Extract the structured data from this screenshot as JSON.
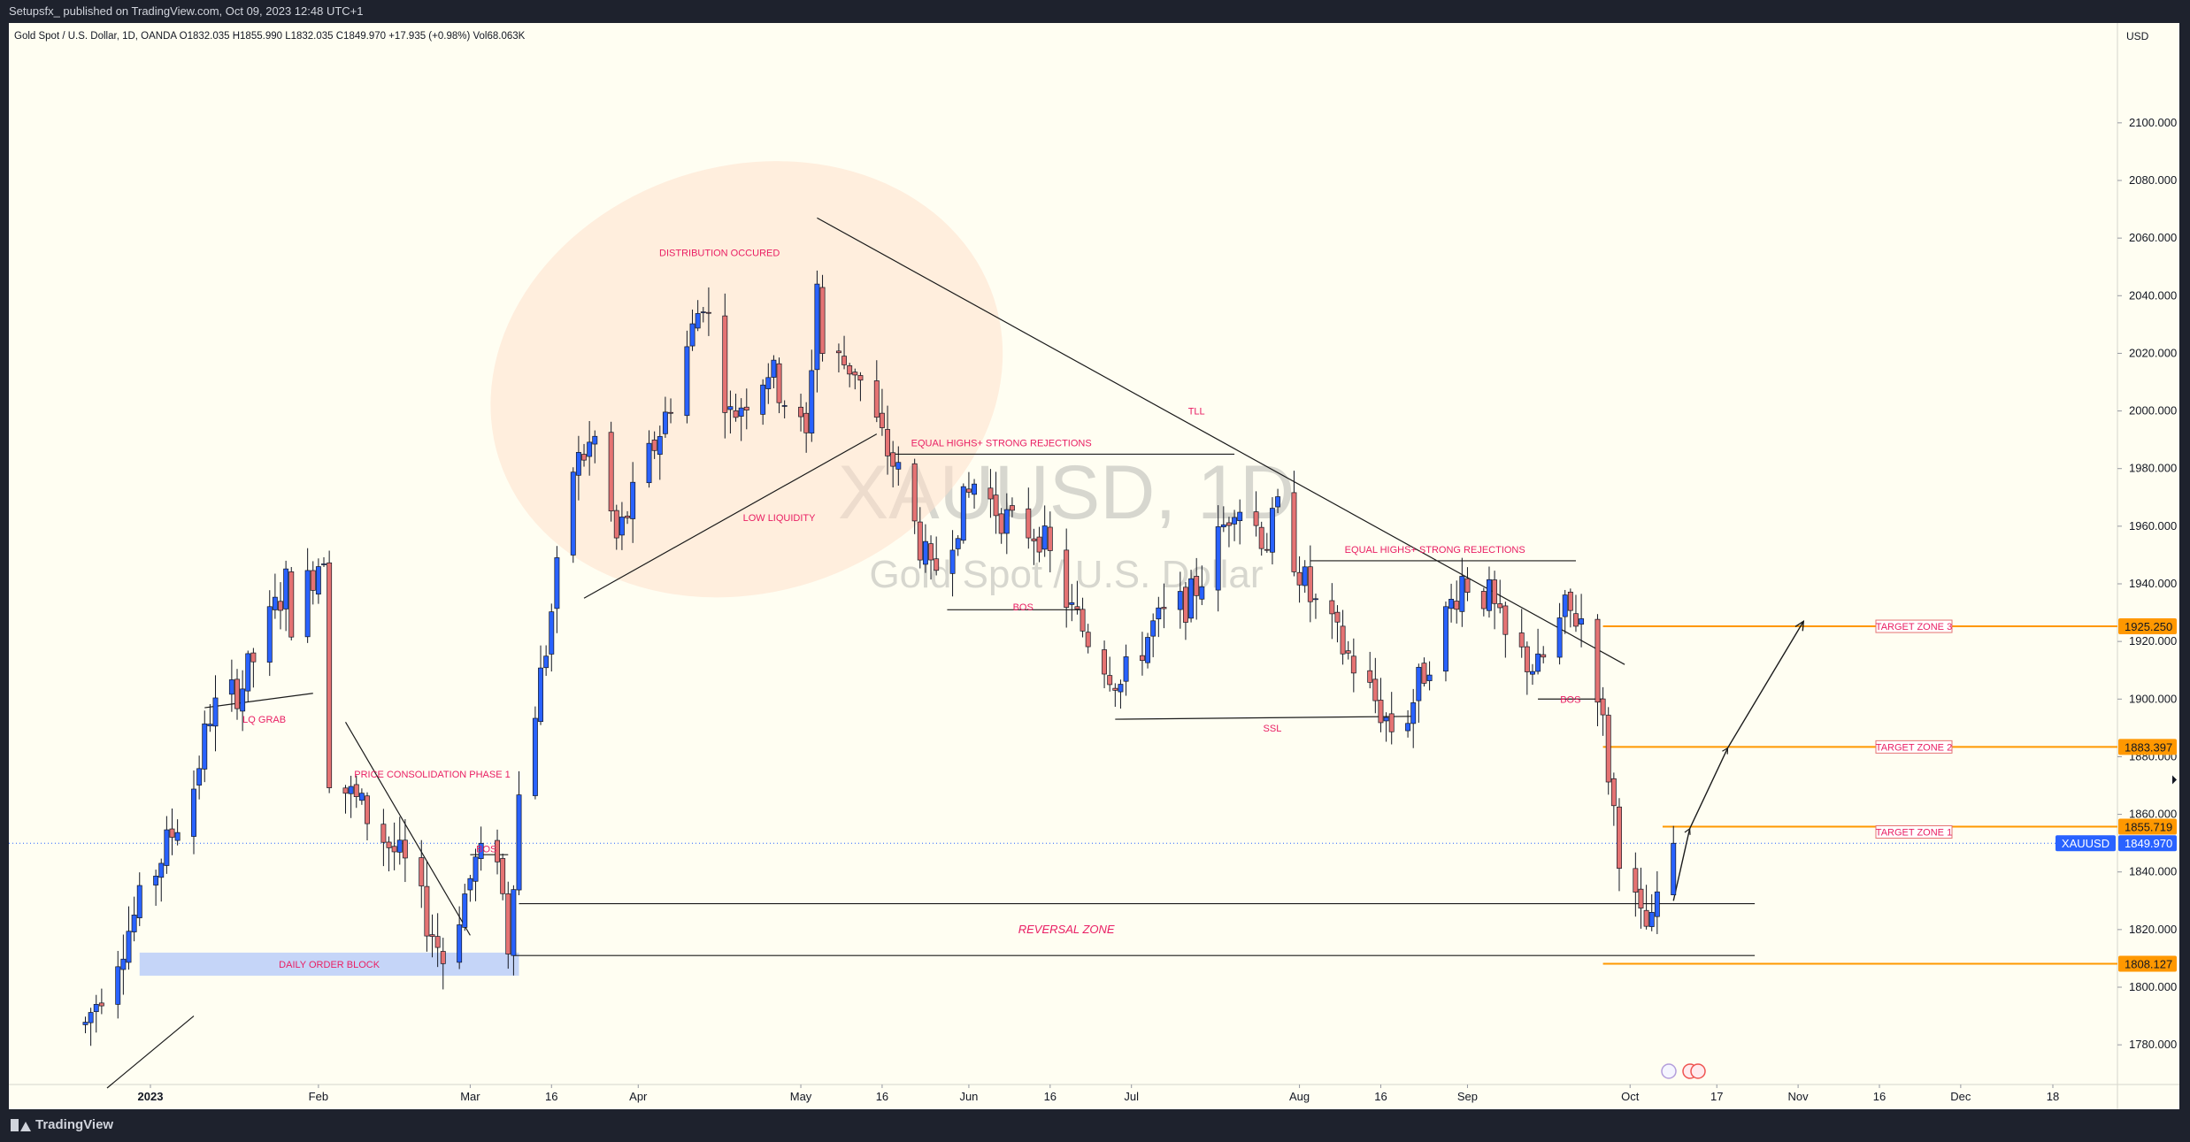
{
  "header": {
    "published_line": "Setupsfx_ published on TradingView.com, Oct 09, 2023 12:48 UTC+1"
  },
  "footer": {
    "brand": "TradingView"
  },
  "symbol_info": "Gold Spot / U.S. Dollar, 1D, OANDA  O1832.035  H1855.990  L1832.035  C1849.970  +17.935 (+0.98%)  Vol68.063K",
  "watermark": {
    "symbol": "XAUUSD, 1D",
    "description": "Gold Spot / U.S. Dollar"
  },
  "colors": {
    "up": "#2962ff",
    "down": "#e57373",
    "target_line": "#ff9800",
    "label_text": "#e91e63",
    "background": "#fffef2"
  },
  "chart_data": {
    "type": "candlestick",
    "currency": "USD",
    "ylim": [
      1765,
      2115
    ],
    "y_ticks": [
      1780,
      1800,
      1820,
      1840,
      1860,
      1880,
      1900,
      1920,
      1940,
      1960,
      1980,
      2000,
      2020,
      2040,
      2060,
      2080,
      2100
    ],
    "y_tick_labels": [
      "1780.000",
      "1800.000",
      "1820.000",
      "1840.000",
      "1860.000",
      "1880.000",
      "1900.000",
      "1920.000",
      "1940.000",
      "1960.000",
      "1980.000",
      "2000.000",
      "2020.000",
      "2040.000",
      "2060.000",
      "2080.000",
      "2100.000"
    ],
    "x_ticks": [
      {
        "date": "2023-01-01",
        "label": "2023",
        "bold": true
      },
      {
        "date": "2023-02-01",
        "label": "Feb"
      },
      {
        "date": "2023-03-01",
        "label": "Mar"
      },
      {
        "date": "2023-03-16",
        "label": "16"
      },
      {
        "date": "2023-04-01",
        "label": "Apr"
      },
      {
        "date": "2023-05-01",
        "label": "May"
      },
      {
        "date": "2023-05-16",
        "label": "16"
      },
      {
        "date": "2023-06-01",
        "label": "Jun"
      },
      {
        "date": "2023-06-16",
        "label": "16"
      },
      {
        "date": "2023-07-01",
        "label": "Jul"
      },
      {
        "date": "2023-08-01",
        "label": "Aug"
      },
      {
        "date": "2023-08-16",
        "label": "16"
      },
      {
        "date": "2023-09-01",
        "label": "Sep"
      },
      {
        "date": "2023-10-01",
        "label": "Oct"
      },
      {
        "date": "2023-10-17",
        "label": "17"
      },
      {
        "date": "2023-11-01",
        "label": "Nov"
      },
      {
        "date": "2023-11-16",
        "label": "16"
      },
      {
        "date": "2023-12-01",
        "label": "Dec"
      },
      {
        "date": "2023-12-18",
        "label": "18"
      }
    ],
    "waypoints": [
      [
        "2022-12-20",
        1787
      ],
      [
        "2023-01-09",
        1870
      ],
      [
        "2023-01-12",
        1895
      ],
      [
        "2023-01-18",
        1905
      ],
      [
        "2023-01-26",
        1940
      ],
      [
        "2023-01-27",
        1928
      ],
      [
        "2023-02-02",
        1952
      ],
      [
        "2023-02-03",
        1875
      ],
      [
        "2023-02-09",
        1862
      ],
      [
        "2023-02-17",
        1842
      ],
      [
        "2023-02-24",
        1810
      ],
      [
        "2023-03-02",
        1843
      ],
      [
        "2023-03-06",
        1848
      ],
      [
        "2023-03-08",
        1815
      ],
      [
        "2023-03-10",
        1866
      ],
      [
        "2023-03-15",
        1918
      ],
      [
        "2023-03-20",
        1980
      ],
      [
        "2023-03-24",
        1990
      ],
      [
        "2023-03-28",
        1955
      ],
      [
        "2023-04-06",
        1998
      ],
      [
        "2023-04-13",
        2040
      ],
      [
        "2023-04-18",
        1998
      ],
      [
        "2023-04-25",
        2015
      ],
      [
        "2023-05-02",
        1990
      ],
      [
        "2023-05-04",
        2045
      ],
      [
        "2023-05-05",
        2020
      ],
      [
        "2023-05-11",
        2015
      ],
      [
        "2023-05-16",
        1990
      ],
      [
        "2023-05-19",
        1978
      ],
      [
        "2023-05-25",
        1942
      ],
      [
        "2023-06-02",
        1975
      ],
      [
        "2023-06-09",
        1960
      ],
      [
        "2023-06-14",
        1958
      ],
      [
        "2023-06-20",
        1930
      ],
      [
        "2023-06-29",
        1905
      ],
      [
        "2023-07-05",
        1925
      ],
      [
        "2023-07-12",
        1935
      ],
      [
        "2023-07-17",
        1955
      ],
      [
        "2023-07-20",
        1970
      ],
      [
        "2023-07-26",
        1955
      ],
      [
        "2023-07-28",
        1965
      ],
      [
        "2023-08-03",
        1935
      ],
      [
        "2023-08-10",
        1915
      ],
      [
        "2023-08-18",
        1890
      ],
      [
        "2023-08-21",
        1895
      ],
      [
        "2023-08-25",
        1915
      ],
      [
        "2023-08-31",
        1942
      ],
      [
        "2023-09-05",
        1935
      ],
      [
        "2023-09-08",
        1920
      ],
      [
        "2023-09-14",
        1910
      ],
      [
        "2023-09-19",
        1930
      ],
      [
        "2023-09-22",
        1928
      ],
      [
        "2023-09-25",
        1905
      ],
      [
        "2023-09-27",
        1875
      ],
      [
        "2023-09-29",
        1848
      ],
      [
        "2023-10-03",
        1822
      ],
      [
        "2023-10-05",
        1820
      ],
      [
        "2023-10-06",
        1832
      ],
      [
        "2023-10-09",
        1850
      ]
    ],
    "last_candle": {
      "date": "2023-10-09",
      "open": 1832.035,
      "high": 1855.99,
      "low": 1832.035,
      "close": 1849.97
    },
    "price_badges": [
      {
        "label": "1925.250",
        "value": 1925.25,
        "color": "#ff9800"
      },
      {
        "label": "1883.397",
        "value": 1883.397,
        "color": "#ff9800"
      },
      {
        "label": "1855.719",
        "value": 1855.719,
        "color": "#ff9800"
      },
      {
        "label": "1849.970",
        "value": 1849.97,
        "color": "#2962ff",
        "symbol": "XAUUSD"
      },
      {
        "label": "1808.127",
        "value": 1808.127,
        "color": "#ff9800"
      }
    ],
    "target_lines": [
      {
        "value": 1925.25,
        "from": "2023-09-26",
        "zone_label": "TARGET ZONE 3"
      },
      {
        "value": 1883.397,
        "from": "2023-09-26",
        "zone_label": "TARGET ZONE 2"
      },
      {
        "value": 1855.719,
        "from": "2023-10-07",
        "zone_label": "TARGET ZONE 1"
      },
      {
        "value": 1808.127,
        "from": "2023-09-26",
        "zone_label": ""
      }
    ],
    "lines": [
      {
        "name": "tll-trendline",
        "from": [
          "2023-05-04",
          2067
        ],
        "to": [
          "2023-09-30",
          1912
        ]
      },
      {
        "name": "equal-highs-june",
        "from": [
          "2023-05-17",
          1985
        ],
        "to": [
          "2023-07-20",
          1985
        ]
      },
      {
        "name": "equal-highs-sept",
        "from": [
          "2023-08-03",
          1948
        ],
        "to": [
          "2023-09-21",
          1948
        ]
      },
      {
        "name": "bos-june",
        "from": [
          "2023-05-28",
          1931
        ],
        "to": [
          "2023-06-22",
          1931
        ]
      },
      {
        "name": "ssl-line",
        "from": [
          "2023-06-28",
          1893
        ],
        "to": [
          "2023-08-22",
          1894
        ]
      },
      {
        "name": "bos-sept",
        "from": [
          "2023-09-14",
          1900
        ],
        "to": [
          "2023-09-26",
          1900
        ]
      },
      {
        "name": "reversal-zone-top",
        "from": [
          "2023-03-10",
          1829
        ],
        "to": [
          "2023-10-24",
          1829
        ]
      },
      {
        "name": "reversal-zone-bottom",
        "from": [
          "2023-03-09",
          1811
        ],
        "to": [
          "2023-10-24",
          1811
        ]
      },
      {
        "name": "bos-mar",
        "from": [
          "2023-03-01",
          1846
        ],
        "to": [
          "2023-03-08",
          1846
        ]
      },
      {
        "name": "low-liquidity-line",
        "from": [
          "2023-03-22",
          1935
        ],
        "to": [
          "2023-05-15",
          1992
        ]
      },
      {
        "name": "lq-grab-line",
        "from": [
          "2023-01-11",
          1897
        ],
        "to": [
          "2023-01-31",
          1902
        ]
      },
      {
        "name": "consolidation-line",
        "from": [
          "2023-02-06",
          1892
        ],
        "to": [
          "2023-03-01",
          1818
        ]
      },
      {
        "name": "lower-trendline",
        "from": [
          "2022-12-24",
          1765
        ],
        "to": [
          "2023-01-09",
          1790
        ]
      }
    ],
    "projection": [
      [
        "2023-10-09",
        1830
      ],
      [
        "2023-10-12",
        1855
      ],
      [
        "2023-10-19",
        1883
      ],
      [
        "2023-11-02",
        1927
      ]
    ],
    "order_block": {
      "label": "DAILY ORDER BLOCK",
      "from": "2022-12-30",
      "to": "2023-03-10",
      "top": 1812,
      "bottom": 1804
    },
    "ellipse": {
      "center_date": "2023-04-21",
      "center_price": 2011,
      "rx_days": 20,
      "ry_price": 37,
      "rotate_deg": -18
    },
    "annotations": [
      {
        "text": "DISTRIBUTION OCCURED",
        "date": "2023-04-16",
        "price": 2055
      },
      {
        "text": "EQUAL HIGHS+ STRONG REJECTIONS",
        "date": "2023-06-07",
        "price": 1989
      },
      {
        "text": "TLL",
        "date": "2023-07-13",
        "price": 2000
      },
      {
        "text": "EQUAL HIGHS+ STRONG REJECTIONS",
        "date": "2023-08-26",
        "price": 1952
      },
      {
        "text": "LOW LIQUIDITY",
        "date": "2023-04-27",
        "price": 1963
      },
      {
        "text": "BOS",
        "date": "2023-06-11",
        "price": 1932
      },
      {
        "text": "SSL",
        "date": "2023-07-27",
        "price": 1890
      },
      {
        "text": "BOS",
        "date": "2023-09-20",
        "price": 1900
      },
      {
        "text": "LQ GRAB",
        "date": "2023-01-22",
        "price": 1893
      },
      {
        "text": "PRICE CONSOLIDATION PHASE 1",
        "date": "2023-02-22",
        "price": 1874
      },
      {
        "text": "BOS",
        "date": "2023-03-04",
        "price": 1848
      },
      {
        "text": "REVERSAL ZONE",
        "date": "2023-06-19",
        "price": 1820,
        "italic": true
      }
    ]
  }
}
